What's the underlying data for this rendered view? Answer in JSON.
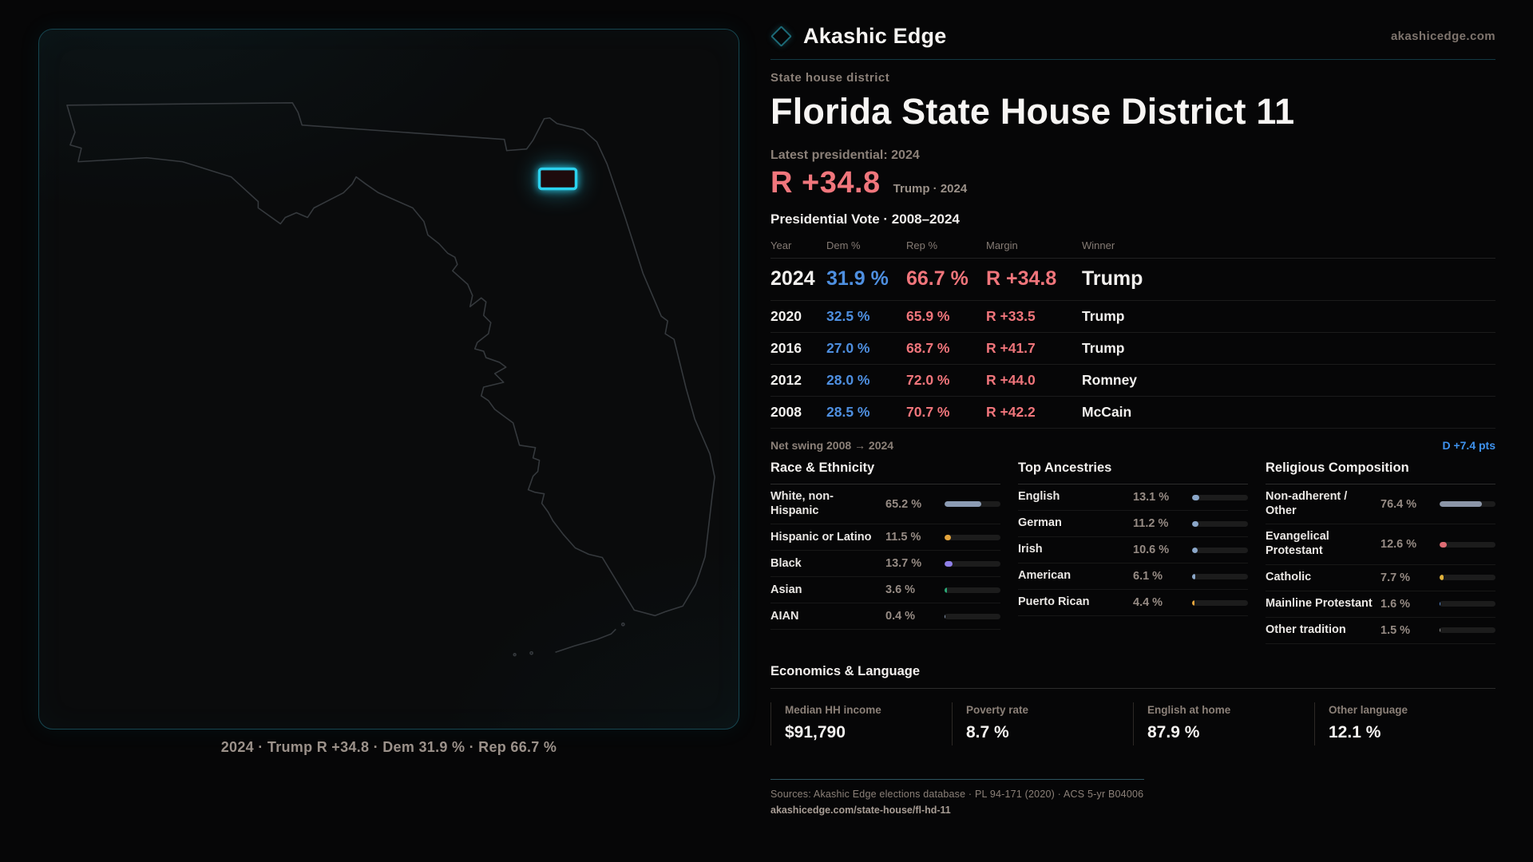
{
  "brand": {
    "name": "Akashic Edge",
    "domain": "akashicedge.com"
  },
  "page": {
    "eyebrow": "State house district",
    "title": "Florida State House District 11",
    "latest_label": "Latest presidential: 2024",
    "headline_margin": "R +34.8",
    "headline_sub": "Trump · 2024",
    "table_title": "Presidential Vote · 2008–2024"
  },
  "vote_table": {
    "columns": [
      "Year",
      "Dem %",
      "Rep %",
      "Margin",
      "Winner"
    ],
    "rows": [
      {
        "year": "2024",
        "dem": "31.9 %",
        "rep": "66.7 %",
        "margin": "R +34.8",
        "winner": "Trump"
      },
      {
        "year": "2020",
        "dem": "32.5 %",
        "rep": "65.9 %",
        "margin": "R +33.5",
        "winner": "Trump"
      },
      {
        "year": "2016",
        "dem": "27.0 %",
        "rep": "68.7 %",
        "margin": "R +41.7",
        "winner": "Trump"
      },
      {
        "year": "2012",
        "dem": "28.0 %",
        "rep": "72.0 %",
        "margin": "R +44.0",
        "winner": "Romney"
      },
      {
        "year": "2008",
        "dem": "28.5 %",
        "rep": "70.7 %",
        "margin": "R +42.2",
        "winner": "McCain"
      }
    ],
    "net_swing_label": "Net swing 2008 → 2024",
    "net_swing_value": "D +7.4 pts"
  },
  "demographics": {
    "race": {
      "title": "Race & Ethnicity",
      "rows": [
        {
          "label": "White, non-Hispanic",
          "value_label": "65.2 %",
          "value": 65.2,
          "color": "#8c9cb4"
        },
        {
          "label": "Hispanic or Latino",
          "value_label": "11.5 %",
          "value": 11.5,
          "color": "#e3a43c"
        },
        {
          "label": "Black",
          "value_label": "13.7 %",
          "value": 13.7,
          "color": "#8f7fe8"
        },
        {
          "label": "Asian",
          "value_label": "3.6 %",
          "value": 3.6,
          "color": "#2aa876"
        },
        {
          "label": "AIAN",
          "value_label": "0.4 %",
          "value": 0.4,
          "color": "#8c9cb4"
        }
      ]
    },
    "ancestry": {
      "title": "Top Ancestries",
      "rows": [
        {
          "label": "English",
          "value_label": "13.1 %",
          "value": 13.1,
          "color": "#8ba7c9"
        },
        {
          "label": "German",
          "value_label": "11.2 %",
          "value": 11.2,
          "color": "#8ba7c9"
        },
        {
          "label": "Irish",
          "value_label": "10.6 %",
          "value": 10.6,
          "color": "#8ba7c9"
        },
        {
          "label": "American",
          "value_label": "6.1 %",
          "value": 6.1,
          "color": "#8ba7c9"
        },
        {
          "label": "Puerto Rican",
          "value_label": "4.4 %",
          "value": 4.4,
          "color": "#e3a43c"
        }
      ]
    },
    "religion": {
      "title": "Religious Composition",
      "rows": [
        {
          "label": "Non-adherent / Other",
          "value_label": "76.4 %",
          "value": 76.4,
          "color": "#8c96a8"
        },
        {
          "label": "Evangelical Protestant",
          "value_label": "12.6 %",
          "value": 12.6,
          "color": "#e06c74"
        },
        {
          "label": "Catholic",
          "value_label": "7.7 %",
          "value": 7.7,
          "color": "#e2b33c"
        },
        {
          "label": "Mainline Protestant",
          "value_label": "1.6 %",
          "value": 1.6,
          "color": "#5b8fd9"
        },
        {
          "label": "Other tradition",
          "value_label": "1.5 %",
          "value": 1.5,
          "color": "#9a9a9a"
        }
      ]
    }
  },
  "economics": {
    "title": "Economics & Language",
    "stats": [
      {
        "label": "Median HH income",
        "value": "$91,790"
      },
      {
        "label": "Poverty rate",
        "value": "8.7 %"
      },
      {
        "label": "English at home",
        "value": "87.9 %"
      },
      {
        "label": "Other language",
        "value": "12.1 %"
      }
    ]
  },
  "footer": {
    "sources": "Sources: Akashic Edge elections database · PL 94-171 (2020) · ACS 5-yr B04006",
    "permalink": "akashicedge.com/state-house/fl-hd-11"
  },
  "map": {
    "caption": "2024 · Trump R +34.8 · Dem 31.9 % · Rep 66.7 %",
    "district_color": "#2bd2ef",
    "outline_color": "#35393d"
  },
  "colors": {
    "dem_blue": "#4e8fe0",
    "rep_red": "#f0757b",
    "swing_blue": "#3f93ef",
    "accent_teal": "#16454f"
  }
}
